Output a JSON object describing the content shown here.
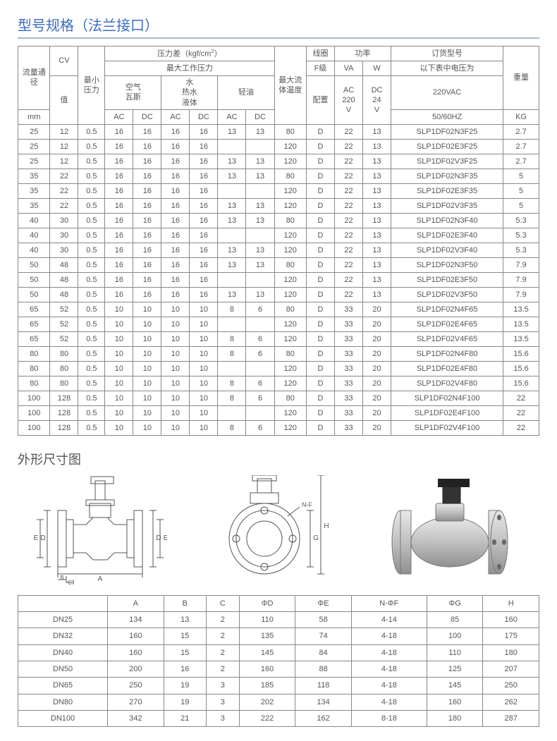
{
  "sectionTitle": "型号规格（法兰接口）",
  "dimSectionTitle": "外形尺寸图",
  "colors": {
    "title": "#3a6cc4",
    "underline": "#aab8d4",
    "border": "#888888",
    "text": "#555555"
  },
  "specHeader": {
    "flow": "流量通径",
    "flowUnit": "mm",
    "cv": "CV",
    "cvSub": "值",
    "minP": "最小压力",
    "pDiff": "压力差（kgf/cm²）",
    "maxWorkP": "最大工作压力",
    "air": "空气\n瓦斯",
    "water": "水\n热水\n液体",
    "oil": "轻油",
    "ac": "AC",
    "dc": "DC",
    "maxTemp": "最大流体温度",
    "coil": "线圈",
    "fClass": "F级",
    "config": "配置",
    "power": "功率",
    "va": "VA",
    "w": "W",
    "ac220": "AC\n220\nV",
    "dc24": "DC\n24\nV",
    "model": "订货型号",
    "modelSub": "以下表中电压为",
    "modelV": "220VAC",
    "modelHz": "50/60HZ",
    "weight": "重量",
    "weightUnit": "KG"
  },
  "specRows": [
    [
      "25",
      "12",
      "0.5",
      "16",
      "16",
      "16",
      "16",
      "13",
      "13",
      "80",
      "D",
      "22",
      "13",
      "SLP1DF02N3F25",
      "2.7"
    ],
    [
      "25",
      "12",
      "0.5",
      "16",
      "16",
      "16",
      "16",
      "",
      "",
      "120",
      "D",
      "22",
      "13",
      "SLP1DF02E3F25",
      "2.7"
    ],
    [
      "25",
      "12",
      "0.5",
      "16",
      "16",
      "16",
      "16",
      "13",
      "13",
      "120",
      "D",
      "22",
      "13",
      "SLP1DF02V3F25",
      "2.7"
    ],
    [
      "35",
      "22",
      "0.5",
      "16",
      "16",
      "16",
      "16",
      "13",
      "13",
      "80",
      "D",
      "22",
      "13",
      "SLP1DF02N3F35",
      "5"
    ],
    [
      "35",
      "22",
      "0.5",
      "16",
      "16",
      "16",
      "16",
      "",
      "",
      "120",
      "D",
      "22",
      "13",
      "SLP1DF02E3F35",
      "5"
    ],
    [
      "35",
      "22",
      "0.5",
      "16",
      "16",
      "16",
      "16",
      "13",
      "13",
      "120",
      "D",
      "22",
      "13",
      "SLP1DF02V3F35",
      "5"
    ],
    [
      "40",
      "30",
      "0.5",
      "16",
      "16",
      "16",
      "16",
      "13",
      "13",
      "80",
      "D",
      "22",
      "13",
      "SLP1DF02N3F40",
      "5.3"
    ],
    [
      "40",
      "30",
      "0.5",
      "16",
      "16",
      "16",
      "16",
      "",
      "",
      "120",
      "D",
      "22",
      "13",
      "SLP1DF02E3F40",
      "5.3"
    ],
    [
      "40",
      "30",
      "0.5",
      "16",
      "16",
      "16",
      "16",
      "13",
      "13",
      "120",
      "D",
      "22",
      "13",
      "SLP1DF02V3F40",
      "5.3"
    ],
    [
      "50",
      "48",
      "0.5",
      "16",
      "16",
      "16",
      "16",
      "13",
      "13",
      "80",
      "D",
      "22",
      "13",
      "SLP1DF02N3F50",
      "7.9"
    ],
    [
      "50",
      "48",
      "0.5",
      "16",
      "16",
      "16",
      "16",
      "",
      "",
      "120",
      "D",
      "22",
      "13",
      "SLP1DF02E3F50",
      "7.9"
    ],
    [
      "50",
      "48",
      "0.5",
      "16",
      "16",
      "16",
      "16",
      "13",
      "13",
      "120",
      "D",
      "22",
      "13",
      "SLP1DF02V3F50",
      "7.9"
    ],
    [
      "65",
      "52",
      "0.5",
      "10",
      "10",
      "10",
      "10",
      "8",
      "6",
      "80",
      "D",
      "33",
      "20",
      "SLP1DF02N4F65",
      "13.5"
    ],
    [
      "65",
      "52",
      "0.5",
      "10",
      "10",
      "10",
      "10",
      "",
      "",
      "120",
      "D",
      "33",
      "20",
      "SLP1DF02E4F65",
      "13.5"
    ],
    [
      "65",
      "52",
      "0.5",
      "10",
      "10",
      "10",
      "10",
      "8",
      "6",
      "120",
      "D",
      "33",
      "20",
      "SLP1DF02V4F65",
      "13.5"
    ],
    [
      "80",
      "80",
      "0.5",
      "10",
      "10",
      "10",
      "10",
      "8",
      "6",
      "80",
      "D",
      "33",
      "20",
      "SLP1DF02N4F80",
      "15.6"
    ],
    [
      "80",
      "80",
      "0.5",
      "10",
      "10",
      "10",
      "10",
      "",
      "",
      "120",
      "D",
      "33",
      "20",
      "SLP1DF02E4F80",
      "15.6"
    ],
    [
      "80",
      "80",
      "0.5",
      "10",
      "10",
      "10",
      "10",
      "8",
      "6",
      "120",
      "D",
      "33",
      "20",
      "SLP1DF02V4F80",
      "15.6"
    ],
    [
      "100",
      "128",
      "0.5",
      "10",
      "10",
      "10",
      "10",
      "8",
      "6",
      "80",
      "D",
      "33",
      "20",
      "SLP1DF02N4F100",
      "22"
    ],
    [
      "100",
      "128",
      "0.5",
      "10",
      "10",
      "10",
      "10",
      "",
      "",
      "120",
      "D",
      "33",
      "20",
      "SLP1DF02E4F100",
      "22"
    ],
    [
      "100",
      "128",
      "0.5",
      "10",
      "10",
      "10",
      "10",
      "8",
      "6",
      "120",
      "D",
      "33",
      "20",
      "SLP1DF02V4F100",
      "22"
    ]
  ],
  "dimHeader": [
    "",
    "A",
    "B",
    "C",
    "ΦD",
    "ΦE",
    "N-ΦF",
    "ΦG",
    "H"
  ],
  "dimRows": [
    [
      "DN25",
      "134",
      "13",
      "2",
      "110",
      "58",
      "4-14",
      "85",
      "160"
    ],
    [
      "DN32",
      "160",
      "15",
      "2",
      "135",
      "74",
      "4-18",
      "100",
      "175"
    ],
    [
      "DN40",
      "160",
      "15",
      "2",
      "145",
      "84",
      "4-18",
      "110",
      "180"
    ],
    [
      "DN50",
      "200",
      "16",
      "2",
      "160",
      "88",
      "4-18",
      "125",
      "207"
    ],
    [
      "DN65",
      "250",
      "19",
      "3",
      "185",
      "118",
      "4-18",
      "145",
      "250"
    ],
    [
      "DN80",
      "270",
      "19",
      "3",
      "202",
      "134",
      "4-18",
      "160",
      "262"
    ],
    [
      "DN100",
      "342",
      "21",
      "3",
      "222",
      "162",
      "8-18",
      "180",
      "287"
    ]
  ],
  "drawingLabels": {
    "a": "A",
    "b": "B",
    "c": "C",
    "d": "D",
    "e": "E",
    "g": "G",
    "h": "H",
    "nf": "N-F"
  }
}
